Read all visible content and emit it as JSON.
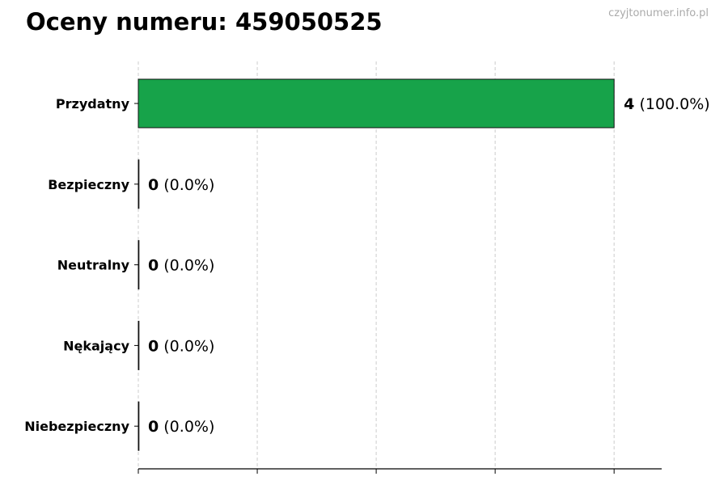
{
  "title": "Oceny numeru: 459050525",
  "watermark": "czyjtonumer.info.pl",
  "chart_data": {
    "type": "bar",
    "orientation": "horizontal",
    "title": "Oceny numeru: 459050525",
    "categories": [
      "Przydatny",
      "Bezpieczny",
      "Neutralny",
      "Nękający",
      "Niebezpieczny"
    ],
    "values": [
      4,
      0,
      0,
      0,
      0
    ],
    "labels": [
      "(100.0%)",
      "(0.0%)",
      "(0.0%)",
      "(0.0%)",
      "(0.0%)"
    ],
    "xlim": [
      0,
      4.4
    ],
    "xticks": [
      0,
      1,
      2,
      3,
      4
    ],
    "xtick_labels_shown": false,
    "grid": "x dashed",
    "bar_color": "#17a34a",
    "xlabel": "",
    "ylabel": ""
  }
}
